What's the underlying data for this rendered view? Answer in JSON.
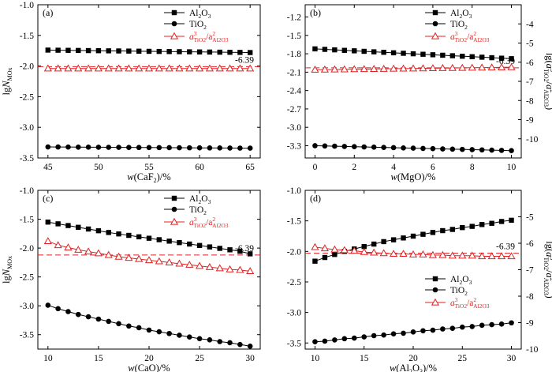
{
  "chart_data": [
    {
      "type": "line",
      "panel": "(a)",
      "x_base": "w",
      "x_paren": "CaF",
      "x_paren_sub": "2",
      "x_suffix": ")/%",
      "x": [
        45,
        46,
        47,
        48,
        49,
        50,
        51,
        52,
        53,
        54,
        55,
        56,
        57,
        58,
        59,
        60,
        61,
        62,
        63,
        64,
        65
      ],
      "xlim": [
        44,
        66
      ],
      "xticks": [
        45,
        50,
        55,
        60,
        65
      ],
      "ylim": [
        -3.5,
        -1.0
      ],
      "yticks": [
        "-1.0",
        "-1.5",
        "-2.0",
        "-2.5",
        "-3.0",
        "-3.5"
      ],
      "ylabel": "lgN",
      "ylabel_sub": "MOx",
      "right_axis": false,
      "series": [
        {
          "name": "Al2O3",
          "marker": "square",
          "color": "#000000",
          "values": [
            -1.74,
            -1.742,
            -1.744,
            -1.746,
            -1.748,
            -1.75,
            -1.752,
            -1.754,
            -1.756,
            -1.758,
            -1.76,
            -1.762,
            -1.764,
            -1.766,
            -1.768,
            -1.77,
            -1.772,
            -1.774,
            -1.776,
            -1.778,
            -1.78
          ]
        },
        {
          "name": "TiO2",
          "marker": "circle",
          "color": "#000000",
          "values": [
            -3.32,
            -3.321,
            -3.322,
            -3.323,
            -3.324,
            -3.325,
            -3.326,
            -3.327,
            -3.328,
            -3.329,
            -3.33,
            -3.331,
            -3.332,
            -3.333,
            -3.334,
            -3.335,
            -3.336,
            -3.337,
            -3.338,
            -3.339,
            -3.34
          ]
        },
        {
          "name": "a3TiO2/a2Al2O3",
          "marker": "triangle",
          "color": "#e02020",
          "values": [
            -2.04,
            -2.04,
            -2.04,
            -2.04,
            -2.04,
            -2.04,
            -2.04,
            -2.04,
            -2.04,
            -2.04,
            -2.04,
            -2.04,
            -2.04,
            -2.04,
            -2.04,
            -2.04,
            -2.04,
            -2.04,
            -2.04,
            -2.04,
            -2.04
          ]
        }
      ],
      "ref_line": {
        "y": -2.01,
        "label": "-6.39",
        "color": "#e02020"
      },
      "legend": "top-right"
    },
    {
      "type": "line",
      "panel": "(b)",
      "x_base": "w",
      "x_paren": "MgO",
      "x_paren_sub": "",
      "x_suffix": ")/%",
      "x": [
        0,
        0.5,
        1,
        1.5,
        2,
        2.5,
        3,
        3.5,
        4,
        4.5,
        5,
        5.5,
        6,
        6.5,
        7,
        7.5,
        8,
        8.5,
        9,
        9.5,
        10
      ],
      "xlim": [
        -0.5,
        10.5
      ],
      "xticks": [
        0,
        2,
        4,
        6,
        8,
        10
      ],
      "ylim": [
        -3.5,
        -1.0
      ],
      "yticks": [
        "-1.2",
        "-1.5",
        "-1.8",
        "-2.1",
        "-2.4",
        "-2.7",
        "-3.0",
        "-3.3"
      ],
      "ytick_values": [
        -1.2,
        -1.5,
        -1.8,
        -2.1,
        -2.4,
        -2.7,
        -3.0,
        -3.3
      ],
      "right_axis": true,
      "right_ylim": [
        -11,
        -3
      ],
      "right_yticks": [
        "-4",
        "-5",
        "-6",
        "-7",
        "-8",
        "-9",
        "-10"
      ],
      "right_ylabel": "lg(a",
      "series": [
        {
          "name": "Al2O3",
          "marker": "square",
          "color": "#000000",
          "values": [
            -1.72,
            -1.728,
            -1.736,
            -1.744,
            -1.752,
            -1.76,
            -1.768,
            -1.776,
            -1.784,
            -1.792,
            -1.8,
            -1.808,
            -1.816,
            -1.824,
            -1.832,
            -1.84,
            -1.848,
            -1.856,
            -1.864,
            -1.872,
            -1.88
          ]
        },
        {
          "name": "TiO2",
          "marker": "circle",
          "color": "#000000",
          "values": [
            -3.3,
            -3.304,
            -3.308,
            -3.312,
            -3.316,
            -3.32,
            -3.324,
            -3.328,
            -3.332,
            -3.336,
            -3.34,
            -3.344,
            -3.348,
            -3.352,
            -3.356,
            -3.36,
            -3.364,
            -3.368,
            -3.372,
            -3.376,
            -3.38
          ]
        },
        {
          "name": "a3TiO2/a2Al2O3",
          "marker": "triangle",
          "color": "#e02020",
          "values": [
            -2.06,
            -2.058,
            -2.056,
            -2.054,
            -2.052,
            -2.05,
            -2.048,
            -2.046,
            -2.044,
            -2.042,
            -2.04,
            -2.038,
            -2.036,
            -2.034,
            -2.032,
            -2.03,
            -2.028,
            -2.026,
            -2.024,
            -2.022,
            -2.02
          ]
        }
      ],
      "ref_line": {
        "y": -2.03,
        "label": "-6.39",
        "color": "#e02020"
      },
      "legend": "top-right"
    },
    {
      "type": "line",
      "panel": "(c)",
      "x_base": "w",
      "x_paren": "CaO",
      "x_paren_sub": "",
      "x_suffix": ")/%",
      "x": [
        10,
        11,
        12,
        13,
        14,
        15,
        16,
        17,
        18,
        19,
        20,
        21,
        22,
        23,
        24,
        25,
        26,
        27,
        28,
        29,
        30
      ],
      "xlim": [
        9,
        31
      ],
      "xticks": [
        10,
        15,
        20,
        25,
        30
      ],
      "ylim": [
        -3.75,
        -1.0
      ],
      "yticks": [
        "-1.0",
        "-1.5",
        "-2.0",
        "-2.5",
        "-3.0",
        "-3.5"
      ],
      "ylabel": "lgN",
      "ylabel_sub": "MOx",
      "right_axis": false,
      "series": [
        {
          "name": "Al2O3",
          "marker": "square",
          "color": "#000000",
          "values": [
            -1.55,
            -1.58,
            -1.61,
            -1.64,
            -1.67,
            -1.7,
            -1.73,
            -1.755,
            -1.78,
            -1.805,
            -1.83,
            -1.855,
            -1.88,
            -1.905,
            -1.93,
            -1.955,
            -1.98,
            -2.005,
            -2.03,
            -2.055,
            -2.1
          ]
        },
        {
          "name": "TiO2",
          "marker": "circle",
          "color": "#000000",
          "values": [
            -2.99,
            -3.05,
            -3.1,
            -3.15,
            -3.19,
            -3.23,
            -3.27,
            -3.31,
            -3.35,
            -3.38,
            -3.42,
            -3.45,
            -3.48,
            -3.51,
            -3.54,
            -3.57,
            -3.59,
            -3.62,
            -3.64,
            -3.67,
            -3.7
          ]
        },
        {
          "name": "a3TiO2/a2Al2O3",
          "marker": "triangle",
          "color": "#e02020",
          "values": [
            -1.88,
            -1.95,
            -1.99,
            -2.03,
            -2.06,
            -2.09,
            -2.12,
            -2.15,
            -2.17,
            -2.19,
            -2.21,
            -2.23,
            -2.25,
            -2.27,
            -2.29,
            -2.31,
            -2.33,
            -2.35,
            -2.37,
            -2.38,
            -2.4
          ]
        }
      ],
      "ref_line": {
        "y": -2.12,
        "label": "-6.39",
        "color": "#e02020"
      },
      "legend": "top-right"
    },
    {
      "type": "line",
      "panel": "(d)",
      "x_base": "w",
      "x_paren": "Al",
      "x_paren_sub": "2",
      "x_paren2": "O",
      "x_paren2_sub": "3",
      "x_suffix": ")/%",
      "x": [
        10,
        11,
        12,
        13,
        14,
        15,
        16,
        17,
        18,
        19,
        20,
        21,
        22,
        23,
        24,
        25,
        26,
        27,
        28,
        29,
        30
      ],
      "xlim": [
        9,
        31
      ],
      "xticks": [
        10,
        15,
        20,
        25,
        30
      ],
      "ylim": [
        -3.6,
        -1.0
      ],
      "yticks": [
        "-1.0",
        "-1.5",
        "-2.0",
        "-2.5",
        "-3.0",
        "-3.5"
      ],
      "ytick_values": [
        -1.0,
        -1.5,
        -2.0,
        -2.5,
        -3.0,
        -3.5
      ],
      "right_axis": true,
      "right_ylim": [
        -10,
        -4
      ],
      "right_yticks": [
        "-5",
        "-6",
        "-7",
        "-8",
        "-9",
        "-10"
      ],
      "right_ylabel": "lg(a",
      "series": [
        {
          "name": "Al2O3",
          "marker": "square",
          "color": "#000000",
          "values": [
            -2.16,
            -2.1,
            -2.05,
            -2.0,
            -1.96,
            -1.92,
            -1.88,
            -1.84,
            -1.81,
            -1.78,
            -1.75,
            -1.72,
            -1.69,
            -1.66,
            -1.64,
            -1.61,
            -1.59,
            -1.56,
            -1.54,
            -1.51,
            -1.49
          ]
        },
        {
          "name": "TiO2",
          "marker": "circle",
          "color": "#000000",
          "values": [
            -3.48,
            -3.47,
            -3.45,
            -3.43,
            -3.42,
            -3.4,
            -3.38,
            -3.37,
            -3.35,
            -3.34,
            -3.32,
            -3.3,
            -3.29,
            -3.27,
            -3.26,
            -3.24,
            -3.23,
            -3.21,
            -3.2,
            -3.19,
            -3.17
          ]
        },
        {
          "name": "a3TiO2/a2Al2O3",
          "marker": "triangle",
          "color": "#e02020",
          "values": [
            -1.93,
            -1.95,
            -1.97,
            -1.98,
            -1.99,
            -2.01,
            -2.02,
            -2.03,
            -2.04,
            -2.04,
            -2.05,
            -2.05,
            -2.06,
            -2.06,
            -2.07,
            -2.07,
            -2.07,
            -2.08,
            -2.08,
            -2.08,
            -2.08
          ]
        }
      ],
      "ref_line": {
        "y": -2.03,
        "label": "-6.39",
        "color": "#e02020"
      },
      "legend": "middle-right"
    }
  ],
  "legend_labels": {
    "al2o3_base": "Al",
    "al2o3_sub1": "2",
    "al2o3_mid": "O",
    "al2o3_sub2": "3",
    "tio2_base": "TiO",
    "tio2_sub": "2",
    "ratio_a": "a",
    "ratio_sup": "3",
    "ratio_sub1": "TiO",
    "ratio_sub1b": "2",
    "ratio_slash": "/a",
    "ratio_sup2": "2",
    "ratio_sub2": "Al",
    "ratio_sub2b": "2",
    "ratio_sub2c": "O",
    "ratio_sub2d": "3"
  },
  "right_ylabel_parts": {
    "lead": "lg(a",
    "sup1": "3",
    "sub1": "TiO",
    "sub1b": "2",
    "mid": "/a",
    "sup2": "2",
    "sub2": "Al",
    "sub2b": "2",
    "sub2c": "O",
    "sub2d": "3",
    "tail": ")"
  }
}
